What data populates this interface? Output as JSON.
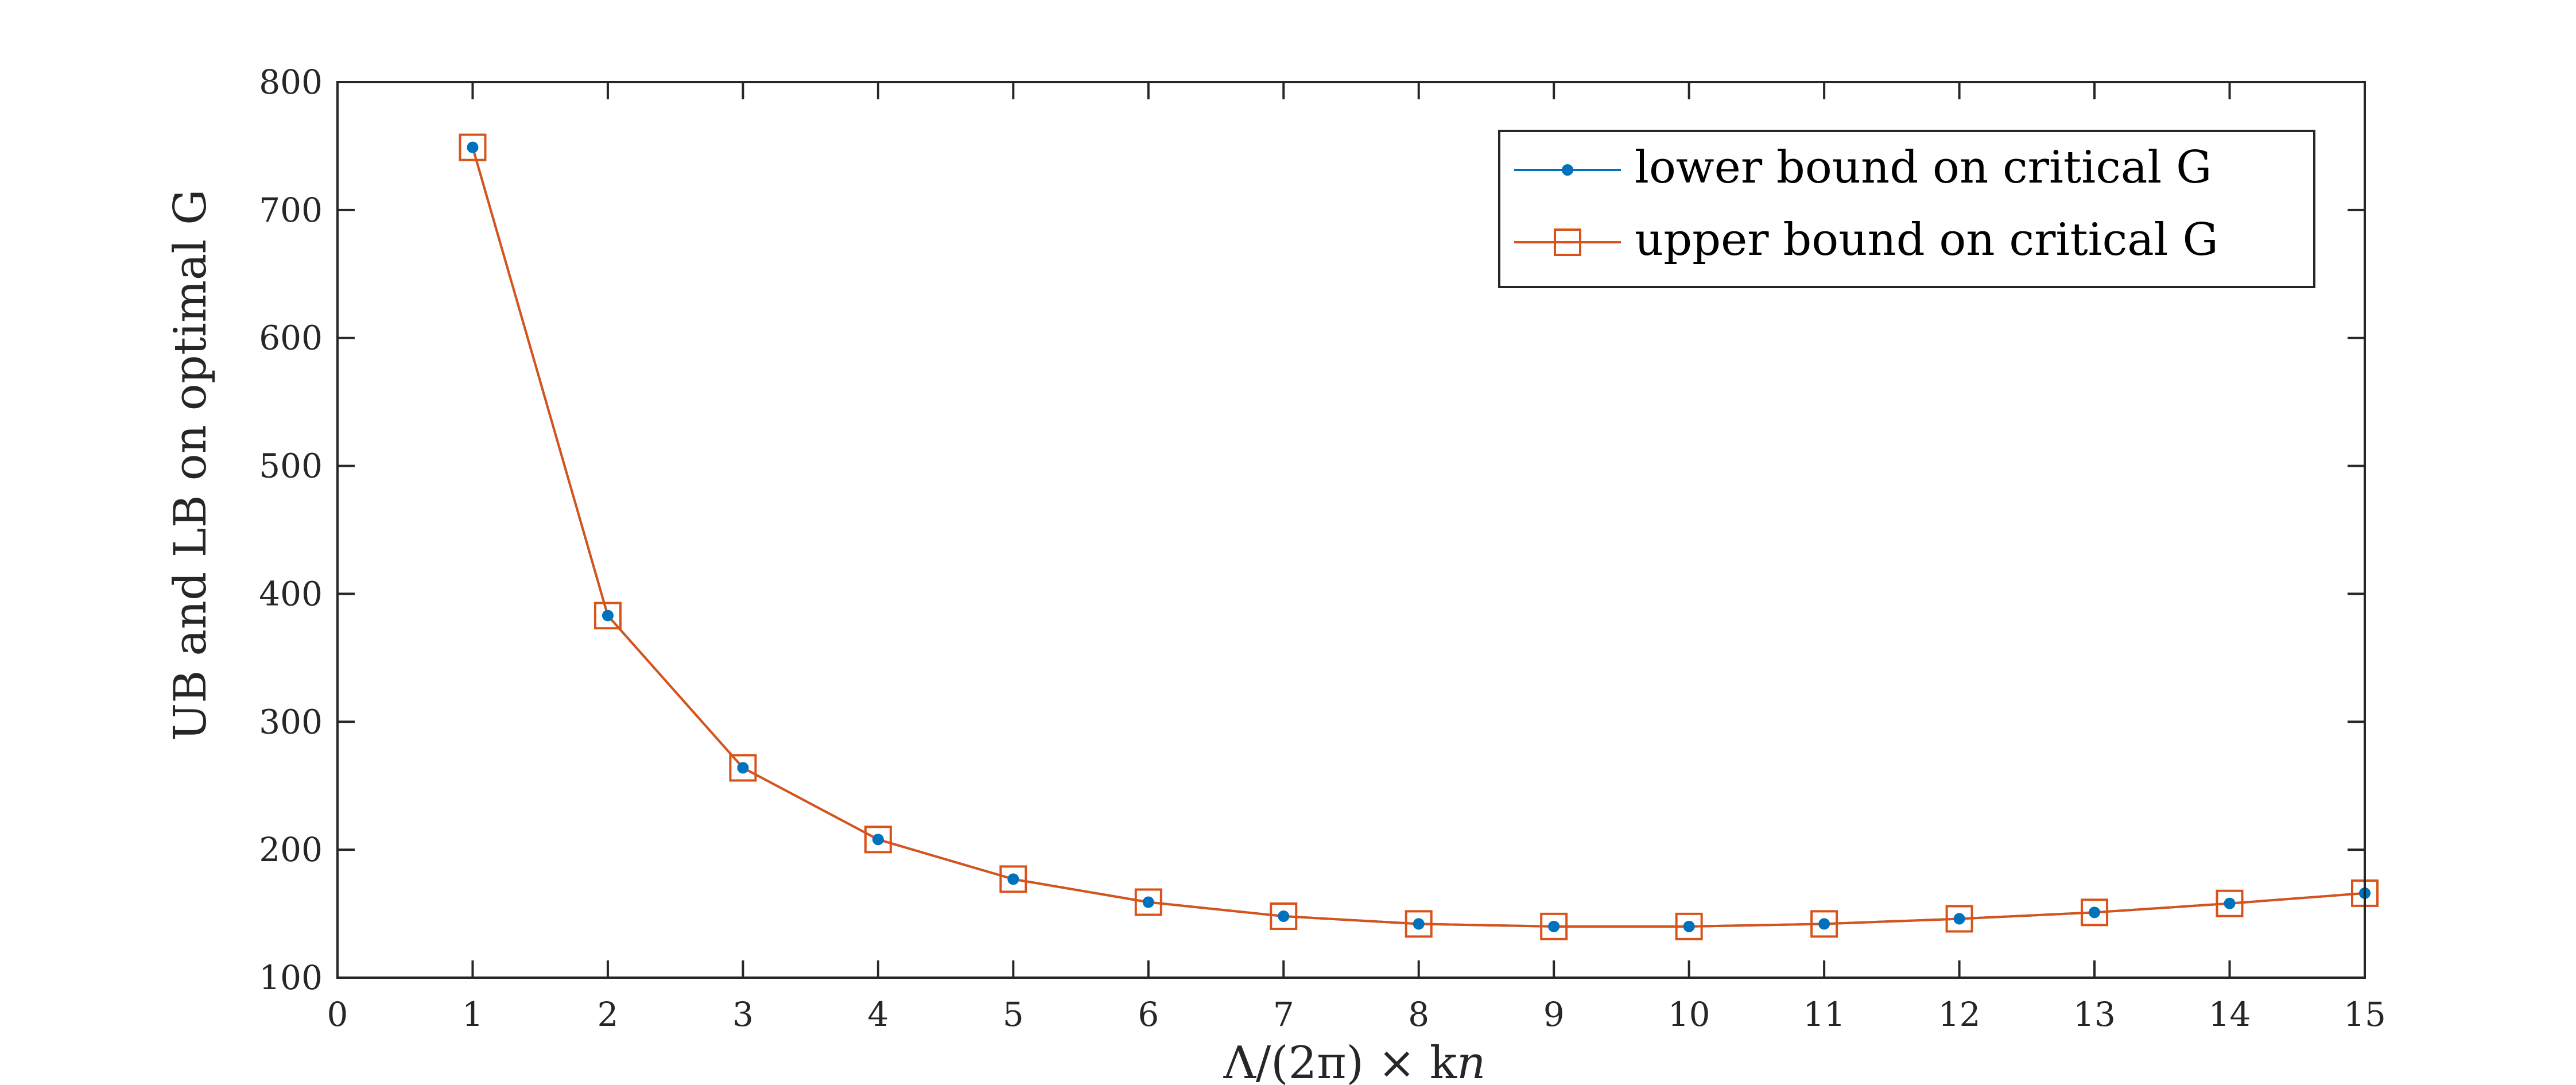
{
  "chart_data": {
    "type": "line",
    "xlabel": "Λ/(2π) × k_n",
    "ylabel": "UB and LB on optimal G",
    "xlim": [
      0,
      15
    ],
    "ylim": [
      100,
      800
    ],
    "xticks": [
      "0",
      "1",
      "2",
      "3",
      "4",
      "5",
      "6",
      "7",
      "8",
      "9",
      "10",
      "11",
      "12",
      "13",
      "14",
      "15"
    ],
    "yticks": [
      "100",
      "200",
      "300",
      "400",
      "500",
      "600",
      "700",
      "800"
    ],
    "grid": false,
    "legend_position": "top-right",
    "x": [
      1,
      2,
      3,
      4,
      5,
      6,
      7,
      8,
      9,
      10,
      11,
      12,
      13,
      14,
      15
    ],
    "series": [
      {
        "name": "lower bound on critical G",
        "marker": "dot",
        "color": "#0072BD",
        "values": [
          749,
          383,
          264,
          208,
          177,
          159,
          148,
          142,
          140,
          140,
          142,
          146,
          151,
          158,
          166
        ]
      },
      {
        "name": "upper bound on critical G",
        "marker": "square",
        "color": "#D95319",
        "values": [
          749,
          383,
          264,
          208,
          177,
          159,
          148,
          142,
          140,
          140,
          142,
          146,
          151,
          158,
          166
        ]
      }
    ]
  }
}
